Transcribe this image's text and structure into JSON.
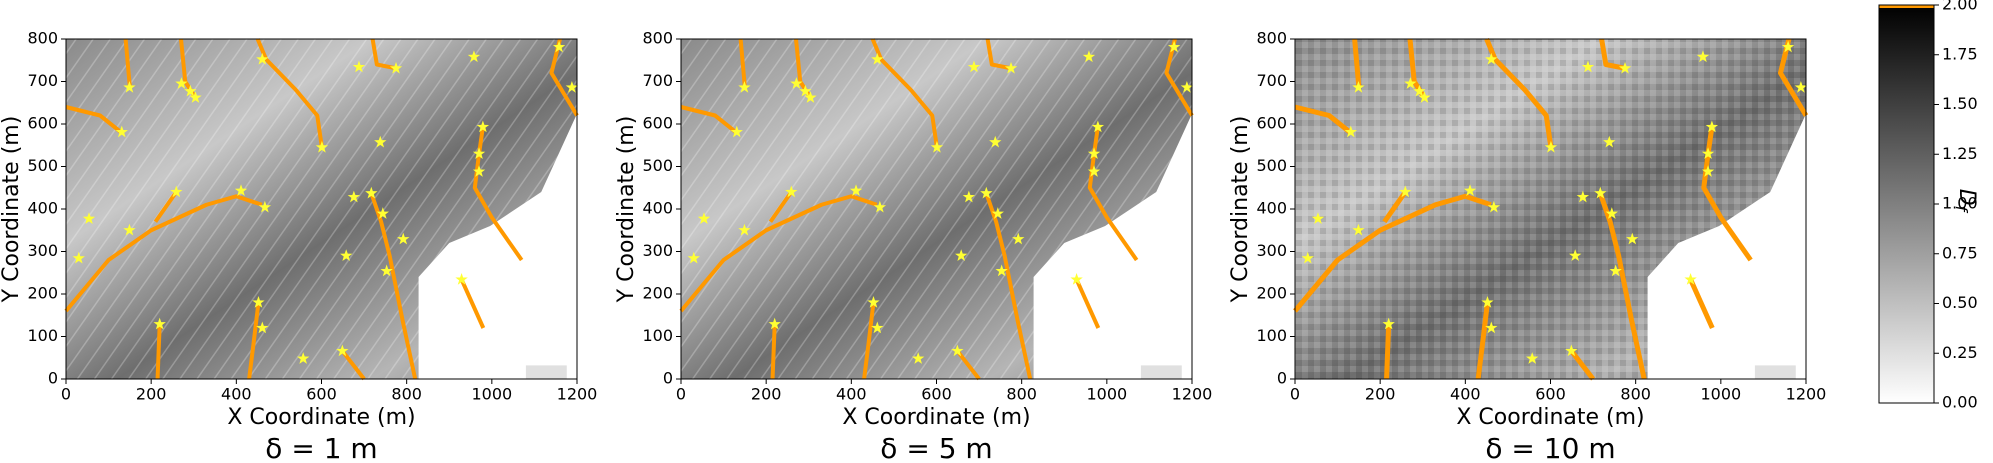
{
  "chart_data": [
    {
      "type": "scatter",
      "subtitle": "δ = 1 m",
      "xlabel": "X Coordinate (m)",
      "ylabel": "Y Coordinate (m)",
      "xlim": [
        0,
        1200
      ],
      "ylim": [
        0,
        800
      ],
      "xticks": [
        0,
        200,
        400,
        600,
        800,
        1000,
        1200
      ],
      "yticks": [
        0,
        100,
        200,
        300,
        400,
        500,
        600,
        700,
        800
      ],
      "channel_color": "#ff9900",
      "point_color": "#ffff33",
      "lines": [
        {
          "x": [
            0,
            100,
            200,
            330,
            400,
            460
          ],
          "y": [
            160,
            280,
            350,
            410,
            430,
            410
          ]
        },
        {
          "x": [
            0,
            80,
            130
          ],
          "y": [
            640,
            620,
            580
          ]
        },
        {
          "x": [
            140,
            150
          ],
          "y": [
            800,
            686
          ]
        },
        {
          "x": [
            270,
            280,
            304
          ],
          "y": [
            800,
            700,
            662
          ]
        },
        {
          "x": [
            450,
            470,
            540,
            590,
            601
          ],
          "y": [
            800,
            752,
            680,
            620,
            545
          ]
        },
        {
          "x": [
            720,
            730,
            775
          ],
          "y": [
            800,
            740,
            731
          ]
        },
        {
          "x": [
            1160,
            1140,
            1200
          ],
          "y": [
            800,
            720,
            620
          ]
        },
        {
          "x": [
            210,
            259
          ],
          "y": [
            370,
            440
          ]
        },
        {
          "x": [
            717,
            740,
            760,
            790,
            820
          ],
          "y": [
            437,
            370,
            290,
            140,
            0
          ]
        },
        {
          "x": [
            979,
            970,
            960,
            1000,
            1070
          ],
          "y": [
            593,
            530,
            450,
            380,
            280
          ]
        },
        {
          "x": [
            220,
            215
          ],
          "y": [
            129,
            0
          ]
        },
        {
          "x": [
            452,
            440,
            430
          ],
          "y": [
            180,
            80,
            0
          ]
        },
        {
          "x": [
            700,
            649
          ],
          "y": [
            0,
            66
          ]
        },
        {
          "x": [
            929,
            980
          ],
          "y": [
            234,
            120
          ]
        }
      ],
      "points": {
        "x": [
          149,
          271,
          292,
          304,
          461,
          131,
          601,
          738,
          688,
          775,
          958,
          979,
          970,
          970,
          259,
          411,
          467,
          54,
          149,
          30,
          676,
          717,
          744,
          792,
          658,
          753,
          929,
          452,
          461,
          220,
          557,
          649,
          1158,
          1188
        ],
        "y": [
          686,
          695,
          677,
          662,
          752,
          581,
          545,
          557,
          734,
          731,
          758,
          593,
          530,
          488,
          440,
          443,
          404,
          377,
          350,
          284,
          428,
          437,
          389,
          329,
          290,
          254,
          234,
          180,
          120,
          129,
          48,
          66,
          781,
          686
        ]
      }
    },
    {
      "type": "scatter",
      "subtitle": "δ = 5 m",
      "xlabel": "X Coordinate (m)",
      "ylabel": "Y Coordinate (m)",
      "xlim": [
        0,
        1200
      ],
      "ylim": [
        0,
        800
      ],
      "xticks": [
        0,
        200,
        400,
        600,
        800,
        1000,
        1200
      ],
      "yticks": [
        0,
        100,
        200,
        300,
        400,
        500,
        600,
        700,
        800
      ],
      "channel_color": "#ff9900",
      "point_color": "#ffff33",
      "lines": [
        {
          "x": [
            0,
            100,
            200,
            330,
            400,
            460
          ],
          "y": [
            160,
            280,
            350,
            410,
            430,
            410
          ]
        },
        {
          "x": [
            0,
            80,
            130
          ],
          "y": [
            640,
            620,
            580
          ]
        },
        {
          "x": [
            140,
            150
          ],
          "y": [
            800,
            686
          ]
        },
        {
          "x": [
            270,
            280,
            304
          ],
          "y": [
            800,
            700,
            662
          ]
        },
        {
          "x": [
            450,
            470,
            540,
            590,
            601
          ],
          "y": [
            800,
            752,
            680,
            620,
            545
          ]
        },
        {
          "x": [
            720,
            730,
            775
          ],
          "y": [
            800,
            740,
            731
          ]
        },
        {
          "x": [
            1160,
            1140,
            1200
          ],
          "y": [
            800,
            720,
            620
          ]
        },
        {
          "x": [
            210,
            259
          ],
          "y": [
            370,
            440
          ]
        },
        {
          "x": [
            717,
            740,
            760,
            790,
            820
          ],
          "y": [
            437,
            370,
            290,
            140,
            0
          ]
        },
        {
          "x": [
            979,
            970,
            960,
            1000,
            1070
          ],
          "y": [
            593,
            530,
            450,
            380,
            280
          ]
        },
        {
          "x": [
            220,
            215
          ],
          "y": [
            129,
            0
          ]
        },
        {
          "x": [
            452,
            440,
            430
          ],
          "y": [
            180,
            80,
            0
          ]
        },
        {
          "x": [
            700,
            649
          ],
          "y": [
            0,
            66
          ]
        },
        {
          "x": [
            929,
            980
          ],
          "y": [
            234,
            120
          ]
        }
      ],
      "points": {
        "x": [
          149,
          271,
          292,
          304,
          461,
          131,
          601,
          738,
          688,
          775,
          958,
          979,
          970,
          970,
          259,
          411,
          467,
          54,
          149,
          30,
          676,
          717,
          744,
          792,
          658,
          753,
          929,
          452,
          461,
          220,
          557,
          649,
          1158,
          1188
        ],
        "y": [
          686,
          695,
          677,
          662,
          752,
          581,
          545,
          557,
          734,
          731,
          758,
          593,
          530,
          488,
          440,
          443,
          404,
          377,
          350,
          284,
          428,
          437,
          389,
          329,
          290,
          254,
          234,
          180,
          120,
          129,
          48,
          66,
          781,
          686
        ]
      }
    },
    {
      "type": "scatter",
      "subtitle": "δ = 10 m",
      "xlabel": "X Coordinate (m)",
      "ylabel": "Y Coordinate (m)",
      "xlim": [
        0,
        1200
      ],
      "ylim": [
        0,
        800
      ],
      "xticks": [
        0,
        200,
        400,
        600,
        800,
        1000,
        1200
      ],
      "yticks": [
        0,
        100,
        200,
        300,
        400,
        500,
        600,
        700,
        800
      ],
      "channel_color": "#ff9900",
      "point_color": "#ffff33",
      "lines": [
        {
          "x": [
            0,
            100,
            200,
            330,
            400,
            460
          ],
          "y": [
            160,
            280,
            350,
            410,
            430,
            410
          ]
        },
        {
          "x": [
            0,
            80,
            130
          ],
          "y": [
            640,
            620,
            580
          ]
        },
        {
          "x": [
            140,
            150
          ],
          "y": [
            800,
            686
          ]
        },
        {
          "x": [
            270,
            280,
            304
          ],
          "y": [
            800,
            700,
            662
          ]
        },
        {
          "x": [
            450,
            470,
            540,
            590,
            601
          ],
          "y": [
            800,
            752,
            680,
            620,
            545
          ]
        },
        {
          "x": [
            720,
            730,
            775
          ],
          "y": [
            800,
            740,
            731
          ]
        },
        {
          "x": [
            1160,
            1140,
            1200
          ],
          "y": [
            800,
            720,
            620
          ]
        },
        {
          "x": [
            210,
            259
          ],
          "y": [
            370,
            440
          ]
        },
        {
          "x": [
            717,
            740,
            760,
            790,
            820
          ],
          "y": [
            437,
            370,
            290,
            140,
            0
          ]
        },
        {
          "x": [
            979,
            970,
            960,
            1000,
            1070
          ],
          "y": [
            593,
            530,
            450,
            380,
            280
          ]
        },
        {
          "x": [
            220,
            215
          ],
          "y": [
            129,
            0
          ]
        },
        {
          "x": [
            452,
            440,
            430
          ],
          "y": [
            180,
            80,
            0
          ]
        },
        {
          "x": [
            700,
            649
          ],
          "y": [
            0,
            66
          ]
        },
        {
          "x": [
            929,
            980
          ],
          "y": [
            234,
            120
          ]
        }
      ],
      "points": {
        "x": [
          149,
          271,
          292,
          304,
          461,
          131,
          601,
          738,
          688,
          775,
          958,
          979,
          970,
          970,
          259,
          411,
          467,
          54,
          149,
          30,
          676,
          717,
          744,
          792,
          658,
          753,
          929,
          452,
          461,
          220,
          557,
          649,
          1158,
          1188
        ],
        "y": [
          686,
          695,
          677,
          662,
          752,
          581,
          545,
          557,
          734,
          731,
          758,
          593,
          530,
          488,
          440,
          443,
          404,
          377,
          350,
          284,
          428,
          437,
          389,
          329,
          290,
          254,
          234,
          180,
          120,
          129,
          48,
          66,
          781,
          686
        ]
      }
    }
  ],
  "colorbar": {
    "label": "D",
    "label_subscript": "f",
    "lim": [
      0,
      2
    ],
    "color_low": "#ffffff",
    "color_high": "#000000",
    "top_line_color": "#ff9900",
    "ticks": [
      {
        "value": 0,
        "label": "0.00"
      },
      {
        "value": 0.25,
        "label": "0.25"
      },
      {
        "value": 0.5,
        "label": "0.50"
      },
      {
        "value": 0.75,
        "label": "0.75"
      },
      {
        "value": 1,
        "label": "1.00"
      },
      {
        "value": 1.25,
        "label": "1.25"
      },
      {
        "value": 1.5,
        "label": "1.50"
      },
      {
        "value": 1.75,
        "label": "1.75"
      },
      {
        "value": 2,
        "label": "2.00"
      }
    ]
  }
}
